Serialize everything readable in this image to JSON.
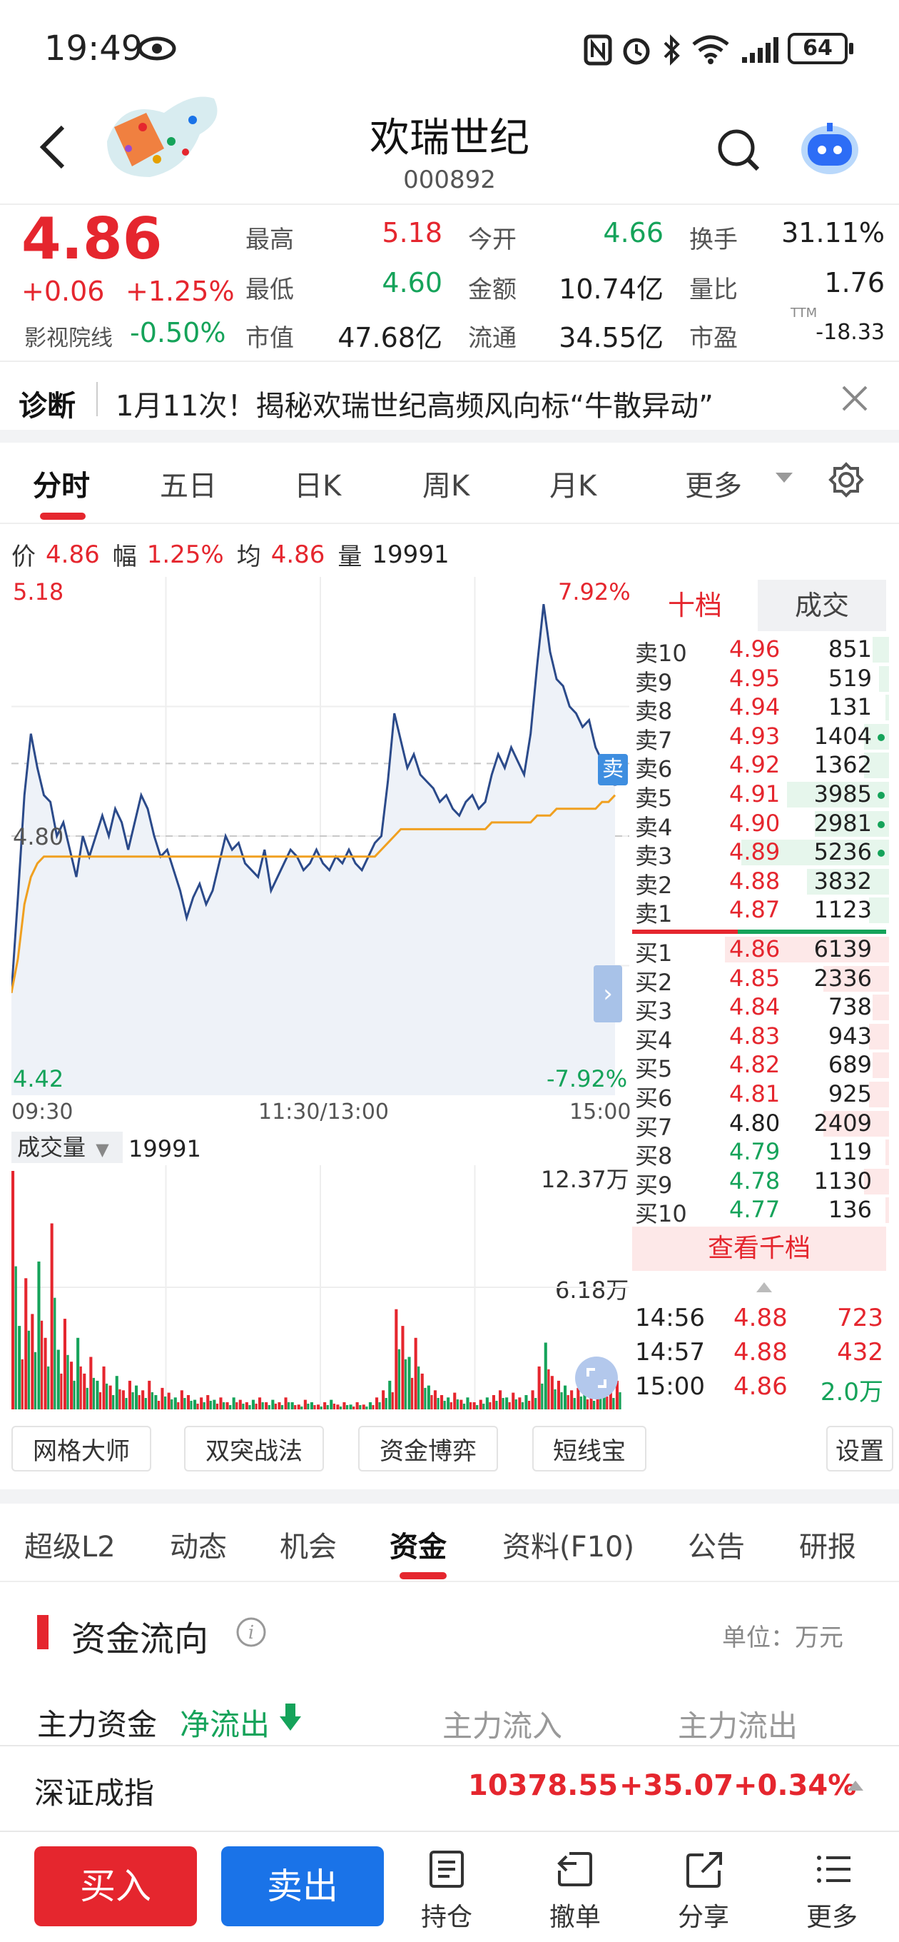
{
  "status_bar": {
    "time": "19:49",
    "battery": "64"
  },
  "header": {
    "name": "欢瑞世纪",
    "code": "000892"
  },
  "quote": {
    "price": "4.86",
    "change": "+0.06",
    "change_pct": "+1.25%",
    "sector_label": "影视院线",
    "sector_pct": "-0.50%",
    "grid": [
      {
        "label": "最高",
        "value": "5.18",
        "color": "red"
      },
      {
        "label": "今开",
        "value": "4.66",
        "color": "green"
      },
      {
        "label": "换手",
        "value": "31.11%",
        "color": "dark"
      },
      {
        "label": "最低",
        "value": "4.60",
        "color": "green"
      },
      {
        "label": "金额",
        "value": "10.74亿",
        "color": "dark"
      },
      {
        "label": "量比",
        "value": "1.76",
        "color": "dark"
      },
      {
        "label": "市值",
        "value": "47.68亿",
        "color": "dark"
      },
      {
        "label": "流通",
        "value": "34.55亿",
        "color": "dark"
      },
      {
        "label": "市盈",
        "value": "-18.33",
        "color": "dark"
      }
    ],
    "pe_suffix": "TTM"
  },
  "diagnosis": {
    "label": "诊断",
    "text": "1月11次！揭秘欢瑞世纪高频风向标“牛散异动”"
  },
  "chart_tabs": [
    "分时",
    "五日",
    "日K",
    "周K",
    "月K",
    "更多"
  ],
  "info_line": {
    "price_label": "价",
    "price": "4.86",
    "amp_label": "幅",
    "amp": "1.25%",
    "avg_label": "均",
    "avg": "4.86",
    "vol_label": "量",
    "vol": "19991"
  },
  "chart_data": {
    "type": "line",
    "title": "",
    "x_ticks": [
      "09:30",
      "11:30/13:00",
      "15:00"
    ],
    "y_left_ticks": [
      "5.18",
      "4.80",
      "4.42"
    ],
    "y_right_ticks": [
      "7.92%",
      "-7.92%"
    ],
    "ylim": [
      4.42,
      5.18
    ],
    "prev_close": 4.8,
    "series": [
      {
        "name": "价",
        "color": "#2b4a8a",
        "values": [
          4.57,
          4.71,
          4.86,
          4.95,
          4.9,
          4.86,
          4.85,
          4.8,
          4.82,
          4.78,
          4.74,
          4.8,
          4.77,
          4.8,
          4.83,
          4.8,
          4.84,
          4.82,
          4.78,
          4.82,
          4.86,
          4.84,
          4.8,
          4.77,
          4.78,
          4.75,
          4.72,
          4.68,
          4.71,
          4.73,
          4.7,
          4.72,
          4.76,
          4.8,
          4.78,
          4.79,
          4.76,
          4.75,
          4.74,
          4.78,
          4.72,
          4.74,
          4.76,
          4.78,
          4.77,
          4.75,
          4.76,
          4.78,
          4.76,
          4.75,
          4.77,
          4.76,
          4.78,
          4.76,
          4.75,
          4.77,
          4.79,
          4.8,
          4.88,
          4.98,
          4.94,
          4.9,
          4.92,
          4.89,
          4.88,
          4.87,
          4.85,
          4.86,
          4.84,
          4.83,
          4.85,
          4.86,
          4.84,
          4.85,
          4.89,
          4.92,
          4.9,
          4.93,
          4.91,
          4.89,
          4.95,
          5.05,
          5.14,
          5.07,
          5.03,
          5.02,
          4.99,
          4.98,
          4.96,
          4.97,
          4.93,
          4.91,
          4.89,
          4.88
        ]
      },
      {
        "name": "均",
        "color": "#f0a020",
        "values": [
          4.57,
          4.62,
          4.7,
          4.74,
          4.76,
          4.77,
          4.77,
          4.77,
          4.77,
          4.77,
          4.77,
          4.77,
          4.77,
          4.77,
          4.77,
          4.77,
          4.77,
          4.77,
          4.77,
          4.77,
          4.77,
          4.77,
          4.77,
          4.77,
          4.77,
          4.77,
          4.77,
          4.77,
          4.77,
          4.77,
          4.77,
          4.77,
          4.77,
          4.77,
          4.77,
          4.77,
          4.77,
          4.77,
          4.77,
          4.77,
          4.77,
          4.77,
          4.77,
          4.77,
          4.77,
          4.77,
          4.77,
          4.77,
          4.77,
          4.77,
          4.77,
          4.77,
          4.77,
          4.77,
          4.77,
          4.77,
          4.77,
          4.78,
          4.79,
          4.8,
          4.81,
          4.81,
          4.81,
          4.81,
          4.81,
          4.81,
          4.81,
          4.81,
          4.81,
          4.81,
          4.81,
          4.81,
          4.81,
          4.81,
          4.82,
          4.82,
          4.82,
          4.82,
          4.82,
          4.82,
          4.82,
          4.83,
          4.83,
          4.83,
          4.84,
          4.84,
          4.84,
          4.84,
          4.84,
          4.84,
          4.84,
          4.85,
          4.85,
          4.86
        ]
      }
    ],
    "volume": {
      "label": "成交量",
      "value": "19991",
      "ticks": [
        "12.37万",
        "6.18万"
      ],
      "max": 123700
    }
  },
  "order_book": {
    "tabs": [
      "十档",
      "成交"
    ],
    "asks": [
      {
        "label": "卖10",
        "price": "4.96",
        "vol": "851",
        "bar": 0.1
      },
      {
        "label": "卖9",
        "price": "4.95",
        "vol": "519",
        "bar": 0.06
      },
      {
        "label": "卖8",
        "price": "4.94",
        "vol": "131",
        "bar": 0.02
      },
      {
        "label": "卖7",
        "price": "4.93",
        "vol": "1404",
        "bar": 0.15
      },
      {
        "label": "卖6",
        "price": "4.92",
        "vol": "1362",
        "bar": 0.15
      },
      {
        "label": "卖5",
        "price": "4.91",
        "vol": "3985",
        "bar": 0.62
      },
      {
        "label": "卖4",
        "price": "4.90",
        "vol": "2981",
        "bar": 0.45
      },
      {
        "label": "卖3",
        "price": "4.89",
        "vol": "5236",
        "bar": 0.9
      },
      {
        "label": "卖2",
        "price": "4.88",
        "vol": "3832",
        "bar": 0.5
      },
      {
        "label": "卖1",
        "price": "4.87",
        "vol": "1123",
        "bar": 0.12
      }
    ],
    "bids": [
      {
        "label": "买1",
        "price": "4.86",
        "vol": "6139",
        "bar": 1.0,
        "color": "red"
      },
      {
        "label": "买2",
        "price": "4.85",
        "vol": "2336",
        "bar": 0.4,
        "color": "red"
      },
      {
        "label": "买3",
        "price": "4.84",
        "vol": "738",
        "bar": 0.1,
        "color": "red"
      },
      {
        "label": "买4",
        "price": "4.83",
        "vol": "943",
        "bar": 0.12,
        "color": "red"
      },
      {
        "label": "买5",
        "price": "4.82",
        "vol": "689",
        "bar": 0.1,
        "color": "red"
      },
      {
        "label": "买6",
        "price": "4.81",
        "vol": "925",
        "bar": 0.12,
        "color": "red"
      },
      {
        "label": "买7",
        "price": "4.80",
        "vol": "2409",
        "bar": 0.4,
        "color": "dark"
      },
      {
        "label": "买8",
        "price": "4.79",
        "vol": "119",
        "bar": 0.02,
        "color": "green"
      },
      {
        "label": "买9",
        "price": "4.78",
        "vol": "1130",
        "bar": 0.15,
        "color": "green"
      },
      {
        "label": "买10",
        "price": "4.77",
        "vol": "136",
        "bar": 0.02,
        "color": "green"
      }
    ],
    "view_all": "查看千档",
    "trades": [
      {
        "time": "14:56",
        "price": "4.88",
        "vol": "723",
        "color": "red"
      },
      {
        "time": "14:57",
        "price": "4.88",
        "vol": "432",
        "color": "red"
      },
      {
        "time": "15:00",
        "price": "4.86",
        "vol": "2.0万",
        "color": "green"
      }
    ],
    "sell_tag": "卖"
  },
  "tools": [
    "网格大师",
    "双突战法",
    "资金博弈",
    "短线宝",
    "设置"
  ],
  "info_tabs": [
    "超级L2",
    "动态",
    "机会",
    "资金",
    "资料(F10)",
    "公告",
    "研报"
  ],
  "fund_flow": {
    "title": "资金流向",
    "unit": "单位：万元",
    "main_label": "主力资金",
    "net": "净流出",
    "inflow": "主力流入",
    "outflow": "主力流出"
  },
  "index_bar": {
    "name": "深证成指",
    "value": "10378.55",
    "change": "+35.07",
    "pct": "+0.34%"
  },
  "bottom_bar": {
    "buy": "买入",
    "sell": "卖出",
    "items": [
      "持仓",
      "撤单",
      "分享",
      "更多"
    ]
  },
  "colors": {
    "red": "#e5262e",
    "green": "#15a35a",
    "blue": "#1a73e8",
    "line": "#2b4a8a",
    "avg": "#f0a020"
  }
}
